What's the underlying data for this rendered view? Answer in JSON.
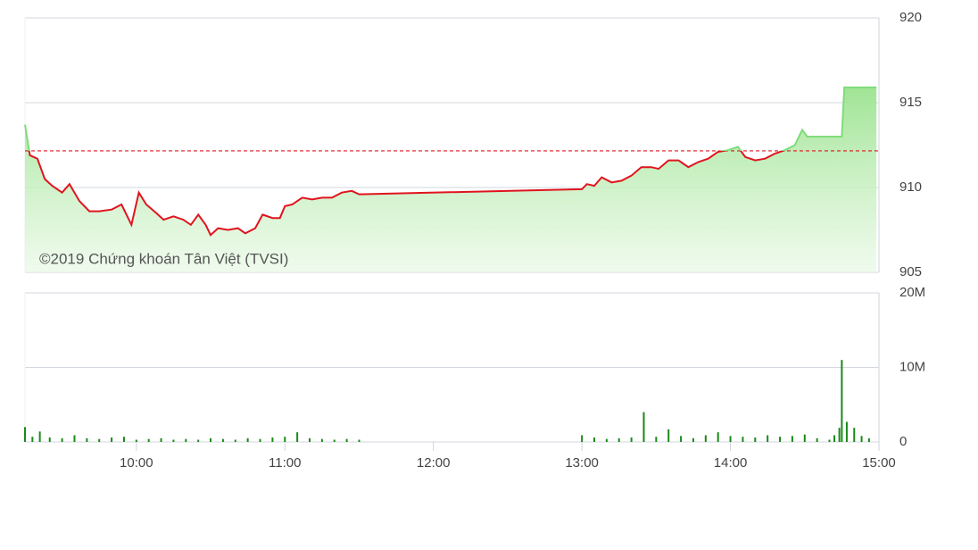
{
  "chart_data": [
    {
      "type": "line",
      "watermark": "©2019 Chứng khoán Tân Việt (TVSI)",
      "x": [
        "09:15",
        "09:17",
        "09:20",
        "09:23",
        "09:26",
        "09:30",
        "09:33",
        "09:37",
        "09:41",
        "09:45",
        "09:50",
        "09:54",
        "09:58",
        "10:01",
        "10:04",
        "10:08",
        "10:11",
        "10:15",
        "10:19",
        "10:22",
        "10:25",
        "10:28",
        "10:30",
        "10:33",
        "10:37",
        "10:41",
        "10:44",
        "10:48",
        "10:51",
        "10:55",
        "10:58",
        "11:00",
        "11:03",
        "11:07",
        "11:11",
        "11:15",
        "11:19",
        "11:23",
        "11:27",
        "11:30",
        "13:00",
        "13:02",
        "13:05",
        "13:08",
        "13:12",
        "13:16",
        "13:20",
        "13:24",
        "13:28",
        "13:31",
        "13:35",
        "13:39",
        "13:43",
        "13:47",
        "13:51",
        "13:55",
        "13:59",
        "14:03",
        "14:06",
        "14:10",
        "14:14",
        "14:18",
        "14:22",
        "14:26",
        "14:29",
        "14:31",
        "14:45",
        "14:46",
        "14:59"
      ],
      "series": [
        {
          "color": "#e0141e",
          "up_color": "#7fdc7a",
          "values": [
            913.7,
            911.9,
            911.7,
            910.5,
            910.1,
            909.7,
            910.2,
            909.2,
            908.6,
            908.6,
            908.7,
            909.0,
            907.8,
            909.7,
            909.0,
            908.5,
            908.1,
            908.3,
            908.1,
            907.8,
            908.4,
            907.8,
            907.2,
            907.6,
            907.5,
            907.6,
            907.3,
            907.6,
            908.4,
            908.2,
            908.2,
            908.9,
            909.0,
            909.4,
            909.3,
            909.4,
            909.4,
            909.7,
            909.8,
            909.6,
            909.9,
            910.2,
            910.1,
            910.6,
            910.3,
            910.4,
            910.7,
            911.2,
            911.2,
            911.1,
            911.6,
            911.6,
            911.2,
            911.5,
            911.7,
            912.1,
            912.2,
            912.4,
            911.8,
            911.6,
            911.7,
            912.0,
            912.2,
            912.5,
            913.4,
            913.0,
            913.0,
            915.9,
            915.9
          ]
        }
      ],
      "reference_line": 912.16,
      "xlim": [
        "09:15",
        "15:00"
      ],
      "ylim": [
        905,
        920
      ],
      "yticks": [
        905,
        910,
        915,
        920
      ],
      "grid": true
    },
    {
      "type": "bar",
      "x": [
        "09:15",
        "09:18",
        "09:21",
        "09:25",
        "09:30",
        "09:35",
        "09:40",
        "09:45",
        "09:50",
        "09:55",
        "10:00",
        "10:05",
        "10:10",
        "10:15",
        "10:20",
        "10:25",
        "10:30",
        "10:35",
        "10:40",
        "10:45",
        "10:50",
        "10:55",
        "11:00",
        "11:05",
        "11:10",
        "11:15",
        "11:20",
        "11:25",
        "11:30",
        "13:00",
        "13:05",
        "13:10",
        "13:15",
        "13:20",
        "13:25",
        "13:30",
        "13:35",
        "13:40",
        "13:45",
        "13:50",
        "13:55",
        "14:00",
        "14:05",
        "14:10",
        "14:15",
        "14:20",
        "14:25",
        "14:30",
        "14:35",
        "14:40",
        "14:42",
        "14:44",
        "14:45",
        "14:47",
        "14:50",
        "14:53",
        "14:56"
      ],
      "values": [
        2000000,
        700000,
        1400000,
        600000,
        500000,
        900000,
        500000,
        400000,
        600000,
        700000,
        300000,
        400000,
        500000,
        300000,
        400000,
        300000,
        500000,
        400000,
        300000,
        500000,
        400000,
        600000,
        700000,
        1300000,
        500000,
        400000,
        300000,
        400000,
        300000,
        900000,
        600000,
        400000,
        500000,
        600000,
        4000000,
        700000,
        1700000,
        800000,
        500000,
        900000,
        1300000,
        800000,
        700000,
        600000,
        900000,
        700000,
        800000,
        1000000,
        500000,
        300000,
        900000,
        1900000,
        11000000,
        2700000,
        1900000,
        800000,
        500000
      ],
      "color": "#1a8a1a",
      "xlim": [
        "09:15",
        "15:00"
      ],
      "xticks": [
        "10:00",
        "11:00",
        "12:00",
        "13:00",
        "14:00",
        "15:00"
      ],
      "ylim": [
        0,
        20000000
      ],
      "yticks": [
        0,
        {
          "value": 10000000,
          "label": "10M"
        },
        {
          "value": 20000000,
          "label": "20M"
        }
      ],
      "grid": true
    }
  ]
}
